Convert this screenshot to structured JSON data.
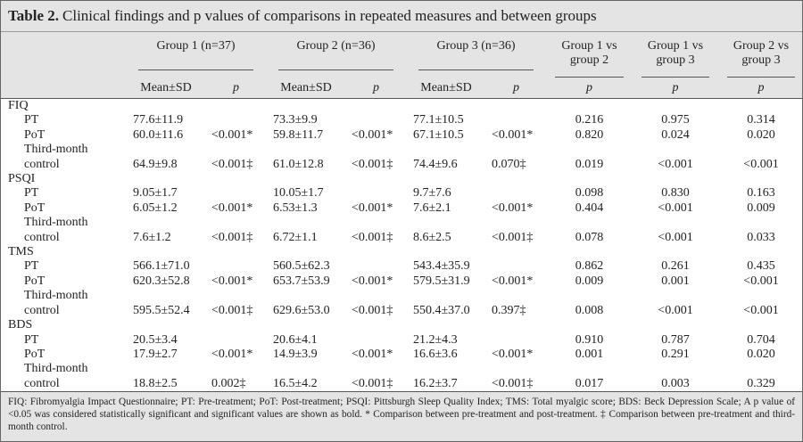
{
  "title": {
    "label": "Table 2.",
    "text": "Clinical findings and p values of comparisons in repeated measures and between groups"
  },
  "header": {
    "groups": [
      "Group 1 (n=37)",
      "Group 2 (n=36)",
      "Group 3 (n=36)"
    ],
    "comparisons": [
      "Group 1 vs group 2",
      "Group 1 vs group 3",
      "Group 2 vs group 3"
    ],
    "sub_headers": [
      "Mean±SD",
      "p",
      "Mean±SD",
      "p",
      "Mean±SD",
      "p",
      "p",
      "p",
      "p"
    ]
  },
  "sections": [
    {
      "name": "FIQ",
      "rows": [
        {
          "label": "PT",
          "cells": [
            "77.6±11.9",
            null,
            "73.3±9.9",
            null,
            "77.1±10.5",
            null,
            "0.216",
            "0.975",
            "0.314"
          ]
        },
        {
          "label": "PoT",
          "cells": [
            "60.0±11.6",
            "<0.001*",
            "59.8±11.7",
            "<0.001*",
            "67.1±10.5",
            "<0.001*",
            "0.820",
            "0.024",
            "0.020"
          ]
        },
        {
          "label": "Third-month control",
          "cells": [
            "64.9±9.8",
            "<0.001‡",
            "61.0±12.8",
            "<0.001‡",
            "74.4±9.6",
            "0.070‡",
            "0.019",
            "<0.001",
            "<0.001"
          ]
        }
      ]
    },
    {
      "name": "PSQI",
      "rows": [
        {
          "label": "PT",
          "cells": [
            "9.05±1.7",
            null,
            "10.05±1.7",
            null,
            "9.7±7.6",
            null,
            "0.098",
            "0.830",
            "0.163"
          ]
        },
        {
          "label": "PoT",
          "cells": [
            "6.05±1.2",
            "<0.001*",
            "6.53±1.3",
            "<0.001*",
            "7.6±2.1",
            "<0.001*",
            "0.404",
            "<0.001",
            "0.009"
          ]
        },
        {
          "label": "Third-month control",
          "cells": [
            "7.6±1.2",
            "<0.001‡",
            "6.72±1.1",
            "<0.001‡",
            "8.6±2.5",
            "<0.001‡",
            "0.078",
            "<0.001",
            "0.033"
          ]
        }
      ]
    },
    {
      "name": "TMS",
      "rows": [
        {
          "label": "PT",
          "cells": [
            "566.1±71.0",
            null,
            "560.5±62.3",
            null,
            "543.4±35.9",
            null,
            "0.862",
            "0.261",
            "0.435"
          ]
        },
        {
          "label": "PoT",
          "cells": [
            "620.3±52.8",
            "<0.001*",
            "653.7±53.9",
            "<0.001*",
            "579.5±31.9",
            "<0.001*",
            "0.009",
            "0.001",
            "<0.001"
          ]
        },
        {
          "label": "Third-month control",
          "cells": [
            "595.5±52.4",
            "<0.001‡",
            "629.6±53.0",
            "<0.001‡",
            "550.4±37.0",
            "0.397‡",
            "0.008",
            "<0.001",
            "<0.001"
          ]
        }
      ]
    },
    {
      "name": "BDS",
      "rows": [
        {
          "label": "PT",
          "cells": [
            "20.5±3.4",
            null,
            "20.6±4.1",
            null,
            "21.2±4.3",
            null,
            "0.910",
            "0.787",
            "0.704"
          ]
        },
        {
          "label": "PoT",
          "cells": [
            "17.9±2.7",
            "<0.001*",
            "14.9±3.9",
            "<0.001*",
            "16.6±3.6",
            "<0.001*",
            "0.001",
            "0.291",
            "0.020"
          ]
        },
        {
          "label": "Third-month control",
          "cells": [
            "18.8±2.5",
            "0.002‡",
            "16.5±4.2",
            "<0.001‡",
            "16.2±3.7",
            "<0.001‡",
            "0.017",
            "0.003",
            "0.329"
          ]
        }
      ]
    }
  ],
  "footnote": "FIQ: Fibromyalgia Impact Questionnaire; PT: Pre-treatment; PoT: Post-treatment; PSQI: Pittsburgh Sleep Quality Index; TMS: Total myalgic score; BDS: Beck Depression Scale; A p value of <0.05 was considered statistically significant and significant values are shown as bold. * Comparison between pre-treatment and post-treatment. ‡ Comparison between pre-treatment and third-month control."
}
